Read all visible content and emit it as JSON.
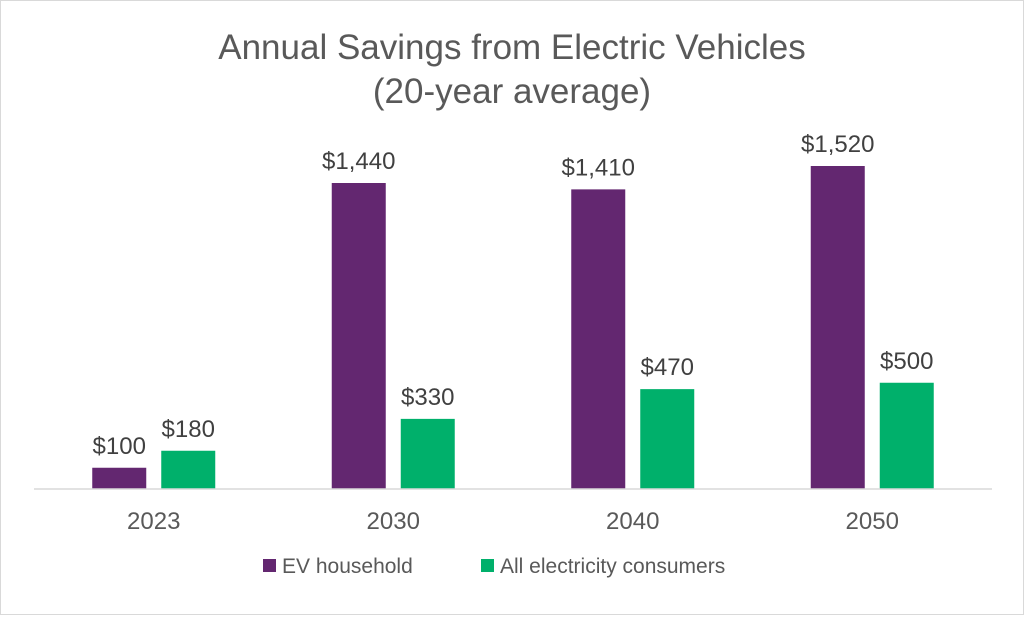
{
  "chart_data": {
    "type": "bar",
    "title": "Annual Savings from Electric Vehicles",
    "subtitle": "(20-year average)",
    "categories": [
      "2023",
      "2030",
      "2040",
      "2050"
    ],
    "series": [
      {
        "name": "EV household",
        "color": "#632770",
        "values": [
          100,
          1440,
          1410,
          1520
        ],
        "labels": [
          "$100",
          "$1,440",
          "$1,410",
          "$1,520"
        ]
      },
      {
        "name": "All electricity consumers",
        "color": "#00b06b",
        "values": [
          180,
          330,
          470,
          500
        ],
        "labels": [
          "$180",
          "$330",
          "$470",
          "$500"
        ]
      }
    ],
    "ylim": [
      0,
      1600
    ],
    "grid": false,
    "legend_position": "bottom"
  }
}
